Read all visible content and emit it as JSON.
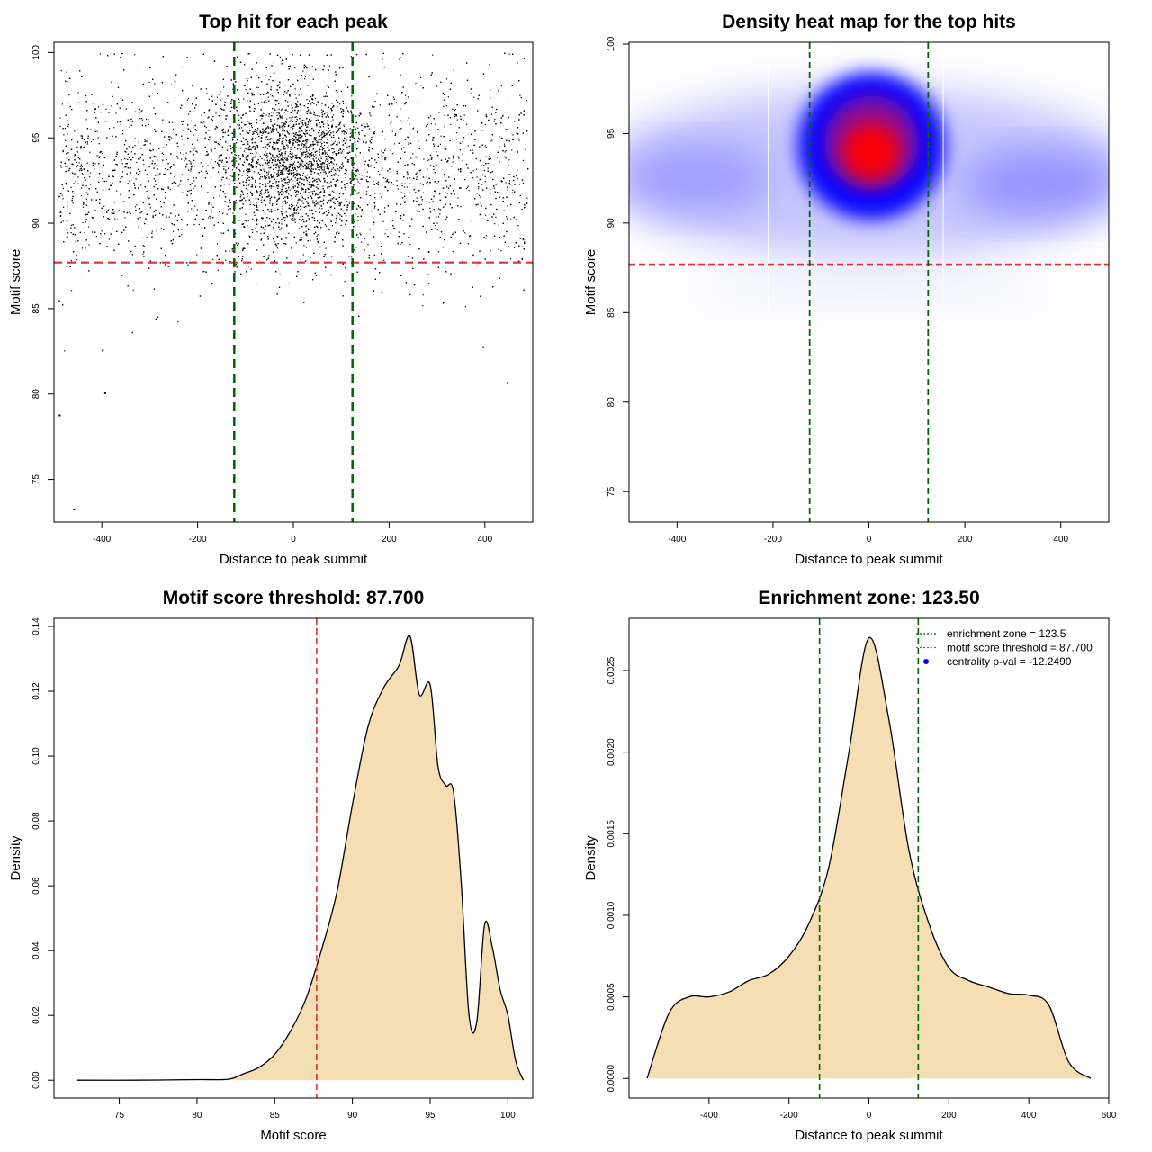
{
  "colors": {
    "threshold": "#e03030",
    "zone": "#006400",
    "fill": "#f5deb3",
    "heat_low": "#ffffff",
    "heat_mid": "#0000ff",
    "heat_high": "#ff0000"
  },
  "chart_data": [
    {
      "type": "scatter",
      "title": "Top hit for each peak",
      "xlabel": "Distance to peak summit",
      "ylabel": "Motif score",
      "xlim": [
        -500,
        500
      ],
      "ylim": [
        72.5,
        100.6
      ],
      "xticks": [
        -400,
        -200,
        0,
        200,
        400
      ],
      "yticks": [
        75,
        80,
        85,
        90,
        95,
        100
      ],
      "threshold_y": 87.7,
      "zone_x": [
        -123.5,
        123.5
      ],
      "point_count": 9000
    },
    {
      "type": "heatmap",
      "title": "Density heat map for the top hits",
      "xlabel": "Distance to peak summit",
      "ylabel": "Motif score",
      "xlim": [
        -500,
        500
      ],
      "ylim": [
        73.3,
        100.1
      ],
      "xticks": [
        -400,
        -200,
        0,
        200,
        400
      ],
      "yticks": [
        75,
        80,
        85,
        90,
        95,
        100
      ],
      "threshold_y": 87.7,
      "zone_x": [
        -123.5,
        123.5
      ]
    },
    {
      "type": "area",
      "title": "Motif score threshold: 87.700",
      "xlabel": "Motif score",
      "ylabel": "Density",
      "xlim": [
        70.8,
        101.6
      ],
      "ylim": [
        -0.0055,
        0.1425
      ],
      "xticks": [
        75,
        80,
        85,
        90,
        95,
        100
      ],
      "yticks": [
        0.0,
        0.02,
        0.04,
        0.06,
        0.08,
        0.1,
        0.12,
        0.14
      ],
      "ytick_labels": [
        "0.00",
        "0.02",
        "0.04",
        "0.06",
        "0.08",
        "0.10",
        "0.12",
        "0.14"
      ],
      "threshold_x": 87.7,
      "x": [
        72.3,
        76,
        80,
        82,
        83,
        84,
        85,
        86,
        87,
        88,
        89,
        90,
        91,
        92,
        93,
        93.7,
        94.3,
        95,
        95.5,
        96,
        96.5,
        97,
        97.5,
        98,
        98.5,
        99,
        99.5,
        100,
        100.5,
        101
      ],
      "y": [
        0.0,
        0.0,
        0.0002,
        0.0003,
        0.002,
        0.004,
        0.008,
        0.015,
        0.025,
        0.04,
        0.058,
        0.085,
        0.109,
        0.121,
        0.128,
        0.137,
        0.119,
        0.122,
        0.097,
        0.091,
        0.089,
        0.061,
        0.02,
        0.018,
        0.048,
        0.041,
        0.028,
        0.02,
        0.006,
        0.0
      ]
    },
    {
      "type": "area",
      "title": "Enrichment zone: 123.50",
      "xlabel": "Distance to peak summit",
      "ylabel": "Density",
      "xlim": [
        -600,
        600
      ],
      "ylim": [
        -0.00012,
        0.00282
      ],
      "xticks": [
        -400,
        -200,
        0,
        200,
        400,
        600
      ],
      "yticks": [
        0.0,
        0.0005,
        0.001,
        0.0015,
        0.002,
        0.0025
      ],
      "ytick_labels": [
        "0.0000",
        "0.0005",
        "0.0010",
        "0.0015",
        "0.0020",
        "0.0025"
      ],
      "zone_x": [
        -123.5,
        123.5
      ],
      "x": [
        -555,
        -500,
        -450,
        -400,
        -350,
        -300,
        -250,
        -200,
        -150,
        -100,
        -50,
        0,
        50,
        100,
        150,
        200,
        250,
        300,
        350,
        400,
        450,
        500,
        555
      ],
      "y": [
        0.0,
        0.0004,
        0.0005,
        0.0005,
        0.00053,
        0.0006,
        0.00064,
        0.00075,
        0.00095,
        0.0013,
        0.002,
        0.0027,
        0.0022,
        0.0014,
        0.00095,
        0.00068,
        0.0006,
        0.00056,
        0.00052,
        0.00051,
        0.00045,
        0.0001,
        0.0
      ],
      "legend": {
        "placement": "top-right",
        "entries": [
          {
            "label": "enrichment zone = 123.5",
            "color": "#006400",
            "style": "dotted-line"
          },
          {
            "label": "motif score threshold = 87.700",
            "color": "#e03030",
            "style": "dotted-line"
          },
          {
            "label": "centrality p-val = -12.2490",
            "color": "#0000ff",
            "style": "point"
          }
        ]
      }
    }
  ]
}
